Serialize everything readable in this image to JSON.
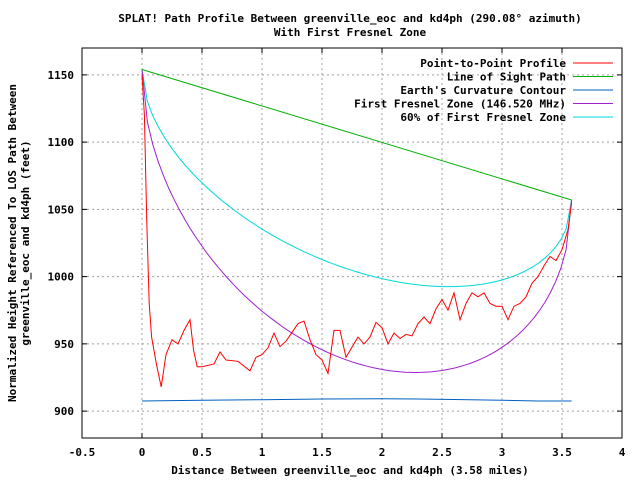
{
  "chart_data": {
    "type": "line",
    "title_line1": "SPLAT! Path Profile Between greenville_eoc and kd4ph (290.08° azimuth)",
    "title_line2": "With First Fresnel Zone",
    "xlabel": "Distance Between greenville_eoc and kd4ph (3.58 miles)",
    "ylabel_line1": "Normalized Height Referenced To LOS Path Between",
    "ylabel_line2": "greenville_eoc and kd4ph (feet)",
    "xlim": [
      -0.5,
      4
    ],
    "ylim": [
      880,
      1170
    ],
    "xticks": [
      -0.5,
      0,
      0.5,
      1,
      1.5,
      2,
      2.5,
      3,
      3.5,
      4
    ],
    "xtick_labels": [
      "-0.5",
      "0",
      "0.5",
      "1",
      "1.5",
      "2",
      "2.5",
      "3",
      "3.5",
      "4"
    ],
    "yticks": [
      900,
      950,
      1000,
      1050,
      1100,
      1150
    ],
    "ytick_labels": [
      "900",
      "950",
      "1000",
      "1050",
      "1100",
      "1150"
    ],
    "grid": true,
    "legend_position": "top-right",
    "series": [
      {
        "name": "Point-to-Point Profile",
        "color": "#ff0000",
        "points": [
          [
            0.0,
            1150
          ],
          [
            0.02,
            1120
          ],
          [
            0.04,
            1040
          ],
          [
            0.06,
            980
          ],
          [
            0.08,
            955
          ],
          [
            0.12,
            935
          ],
          [
            0.16,
            918
          ],
          [
            0.2,
            942
          ],
          [
            0.25,
            953
          ],
          [
            0.3,
            950
          ],
          [
            0.35,
            960
          ],
          [
            0.4,
            968
          ],
          [
            0.43,
            945
          ],
          [
            0.46,
            933
          ],
          [
            0.5,
            933
          ],
          [
            0.6,
            935
          ],
          [
            0.65,
            944
          ],
          [
            0.7,
            938
          ],
          [
            0.8,
            937
          ],
          [
            0.9,
            930
          ],
          [
            0.95,
            940
          ],
          [
            1.0,
            942
          ],
          [
            1.05,
            947
          ],
          [
            1.1,
            958
          ],
          [
            1.15,
            948
          ],
          [
            1.2,
            952
          ],
          [
            1.3,
            965
          ],
          [
            1.35,
            967
          ],
          [
            1.4,
            953
          ],
          [
            1.45,
            942
          ],
          [
            1.5,
            938
          ],
          [
            1.55,
            928
          ],
          [
            1.6,
            960
          ],
          [
            1.65,
            960
          ],
          [
            1.7,
            940
          ],
          [
            1.8,
            955
          ],
          [
            1.85,
            950
          ],
          [
            1.9,
            955
          ],
          [
            1.95,
            966
          ],
          [
            2.0,
            962
          ],
          [
            2.05,
            950
          ],
          [
            2.1,
            958
          ],
          [
            2.15,
            954
          ],
          [
            2.2,
            957
          ],
          [
            2.25,
            956
          ],
          [
            2.3,
            965
          ],
          [
            2.35,
            970
          ],
          [
            2.4,
            965
          ],
          [
            2.45,
            976
          ],
          [
            2.5,
            983
          ],
          [
            2.55,
            975
          ],
          [
            2.6,
            988
          ],
          [
            2.65,
            968
          ],
          [
            2.7,
            980
          ],
          [
            2.75,
            988
          ],
          [
            2.8,
            985
          ],
          [
            2.85,
            988
          ],
          [
            2.9,
            980
          ],
          [
            2.95,
            978
          ],
          [
            3.0,
            978
          ],
          [
            3.05,
            968
          ],
          [
            3.1,
            978
          ],
          [
            3.15,
            980
          ],
          [
            3.2,
            985
          ],
          [
            3.25,
            995
          ],
          [
            3.3,
            1000
          ],
          [
            3.35,
            1008
          ],
          [
            3.4,
            1015
          ],
          [
            3.45,
            1012
          ],
          [
            3.5,
            1020
          ],
          [
            3.55,
            1035
          ],
          [
            3.58,
            1055
          ]
        ]
      },
      {
        "name": "Line of Sight Path",
        "color": "#00b000",
        "points": [
          [
            0.0,
            1154
          ],
          [
            3.58,
            1057
          ]
        ]
      },
      {
        "name": "Earth's Curvature Contour",
        "color": "#0060c0",
        "points": [
          [
            0.0,
            907.5
          ],
          [
            0.5,
            908
          ],
          [
            1.0,
            908.5
          ],
          [
            1.5,
            909
          ],
          [
            2.0,
            909.2
          ],
          [
            2.3,
            909
          ],
          [
            2.6,
            908.6
          ],
          [
            3.0,
            908
          ],
          [
            3.3,
            907.5
          ],
          [
            3.58,
            907.5
          ]
        ]
      },
      {
        "name": "First Fresnel Zone (146.520 MHz)",
        "color": "#a020d0",
        "fresnel_fraction": 1.0
      },
      {
        "name": "60% of First Fresnel Zone",
        "color": "#00d8d8",
        "fresnel_fraction": 0.6
      }
    ],
    "fresnel_path": {
      "distance_miles": 3.58,
      "los_start_ft": 1154,
      "los_end_ft": 1057,
      "first_zone_radius_ft": 170
    }
  }
}
